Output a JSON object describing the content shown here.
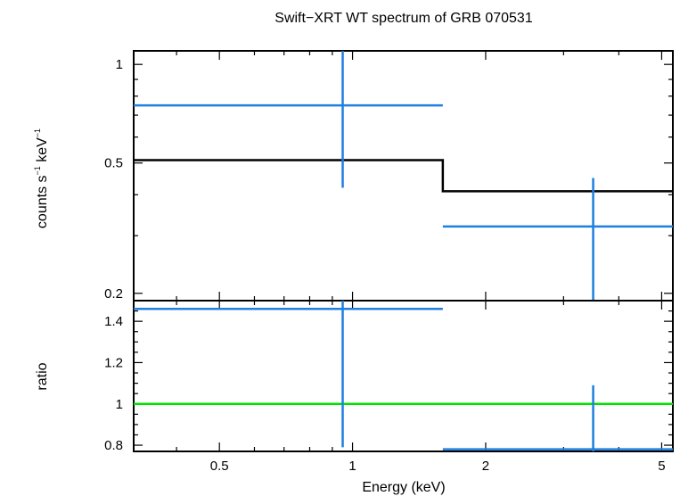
{
  "chart_data": {
    "type": "scatter",
    "title": "Swift−XRT WT spectrum of GRB 070531",
    "xlabel": "Energy (keV)",
    "xscale": "log",
    "xlim": [
      0.32,
      5.3
    ],
    "x_ticks": [
      {
        "value": 0.5,
        "label": "0.5"
      },
      {
        "value": 1,
        "label": "1"
      },
      {
        "value": 2,
        "label": "2"
      },
      {
        "value": 5,
        "label": "5"
      }
    ],
    "panels": [
      {
        "id": "spectrum",
        "ylabel_parts": {
          "a": "counts s",
          "sup1": "−1",
          "b": " keV",
          "sup2": "−1"
        },
        "yscale": "log",
        "ylim": [
          0.19,
          1.1
        ],
        "y_ticks": [
          {
            "value": 0.2,
            "label": "0.2"
          },
          {
            "value": 0.5,
            "label": "0.5"
          },
          {
            "value": 1,
            "label": "1"
          }
        ],
        "data": {
          "name": "",
          "color": "#1f7fe0",
          "points": [
            {
              "x": 0.95,
              "xlo": 0.32,
              "xhi": 1.6,
              "y": 0.75,
              "ylo": 0.42,
              "yhi": 1.1
            },
            {
              "x": 3.5,
              "xlo": 1.6,
              "xhi": 5.3,
              "y": 0.32,
              "ylo": 0.19,
              "yhi": 0.45
            }
          ]
        },
        "model": {
          "name": "",
          "color": "#000000",
          "steps": [
            {
              "xlo": 0.32,
              "xhi": 1.6,
              "y": 0.51
            },
            {
              "xlo": 1.6,
              "xhi": 5.3,
              "y": 0.41
            }
          ]
        }
      },
      {
        "id": "ratio",
        "ylabel": "ratio",
        "yscale": "linear",
        "ylim": [
          0.77,
          1.5
        ],
        "y_ticks": [
          {
            "value": 0.8,
            "label": "0.8"
          },
          {
            "value": 1.0,
            "label": "1"
          },
          {
            "value": 1.2,
            "label": "1.2"
          },
          {
            "value": 1.4,
            "label": "1.4"
          }
        ],
        "data": {
          "name": "",
          "color": "#1f7fe0",
          "points": [
            {
              "x": 0.95,
              "xlo": 0.32,
              "xhi": 1.6,
              "y": 1.46,
              "ylo": 0.79,
              "yhi": 1.5
            },
            {
              "x": 3.5,
              "xlo": 1.6,
              "xhi": 5.3,
              "y": 0.78,
              "ylo": 0.77,
              "yhi": 1.09
            }
          ]
        },
        "reference_line": {
          "y": 1.0,
          "color": "#00e000"
        }
      }
    ]
  }
}
